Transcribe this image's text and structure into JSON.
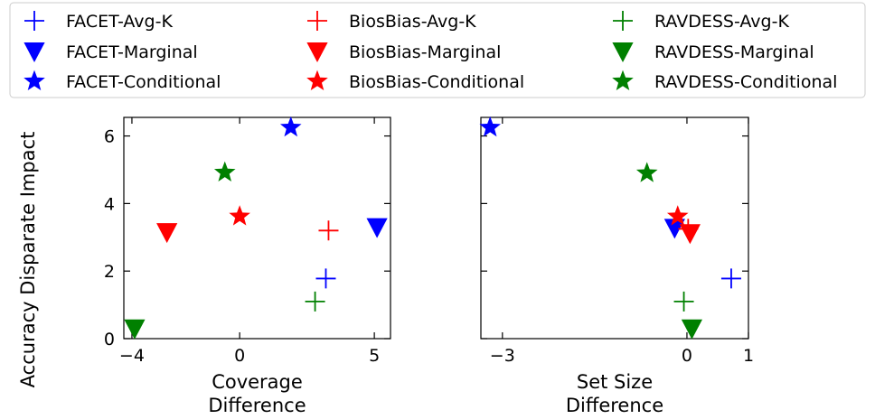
{
  "colors": {
    "FACET": "#0000ff",
    "BiosBias": "#ff0000",
    "RAVDESS": "#008000"
  },
  "legend": [
    {
      "label": "FACET-Avg-K",
      "dataset": "FACET",
      "marker": "plus"
    },
    {
      "label": "FACET-Marginal",
      "dataset": "FACET",
      "marker": "triangle"
    },
    {
      "label": "FACET-Conditional",
      "dataset": "FACET",
      "marker": "star"
    },
    {
      "label": "BiosBias-Avg-K",
      "dataset": "BiosBias",
      "marker": "plus"
    },
    {
      "label": "BiosBias-Marginal",
      "dataset": "BiosBias",
      "marker": "triangle"
    },
    {
      "label": "BiosBias-Conditional",
      "dataset": "BiosBias",
      "marker": "star"
    },
    {
      "label": "RAVDESS-Avg-K",
      "dataset": "RAVDESS",
      "marker": "plus"
    },
    {
      "label": "RAVDESS-Marginal",
      "dataset": "RAVDESS",
      "marker": "triangle"
    },
    {
      "label": "RAVDESS-Conditional",
      "dataset": "RAVDESS",
      "marker": "star"
    }
  ],
  "chart_data": [
    {
      "type": "scatter",
      "xlabel": [
        "Coverage",
        "Difference"
      ],
      "ylabel": "Accuracy Disparate Impact",
      "xlim": [
        -4.3,
        5.6
      ],
      "ylim": [
        0,
        6.55
      ],
      "xticks": [
        -4,
        0,
        5
      ],
      "yticks": [
        0,
        2,
        4,
        6
      ],
      "points": [
        {
          "series": "FACET-Avg-K",
          "x": 3.2,
          "y": 1.78
        },
        {
          "series": "FACET-Marginal",
          "x": 5.1,
          "y": 3.3
        },
        {
          "series": "FACET-Conditional",
          "x": 1.9,
          "y": 6.25
        },
        {
          "series": "BiosBias-Avg-K",
          "x": 3.3,
          "y": 3.2
        },
        {
          "series": "BiosBias-Marginal",
          "x": -2.7,
          "y": 3.15
        },
        {
          "series": "BiosBias-Conditional",
          "x": 0.0,
          "y": 3.62
        },
        {
          "series": "RAVDESS-Avg-K",
          "x": 2.8,
          "y": 1.1
        },
        {
          "series": "RAVDESS-Marginal",
          "x": -3.9,
          "y": 0.3
        },
        {
          "series": "RAVDESS-Conditional",
          "x": -0.55,
          "y": 4.92
        }
      ]
    },
    {
      "type": "scatter",
      "xlabel": [
        "Set Size",
        "Difference"
      ],
      "ylabel": "",
      "xlim": [
        -3.35,
        1.0
      ],
      "ylim": [
        0,
        6.55
      ],
      "xticks": [
        -3,
        0,
        1
      ],
      "yticks": [
        0,
        2,
        4,
        6
      ],
      "points": [
        {
          "series": "FACET-Avg-K",
          "x": 0.72,
          "y": 1.78
        },
        {
          "series": "FACET-Marginal",
          "x": -0.2,
          "y": 3.28
        },
        {
          "series": "FACET-Conditional",
          "x": -3.2,
          "y": 6.25
        },
        {
          "series": "BiosBias-Avg-K",
          "x": 0.02,
          "y": 3.25
        },
        {
          "series": "BiosBias-Marginal",
          "x": 0.05,
          "y": 3.12
        },
        {
          "series": "BiosBias-Conditional",
          "x": -0.15,
          "y": 3.62
        },
        {
          "series": "RAVDESS-Avg-K",
          "x": -0.05,
          "y": 1.1
        },
        {
          "series": "RAVDESS-Marginal",
          "x": 0.08,
          "y": 0.3
        },
        {
          "series": "RAVDESS-Conditional",
          "x": -0.65,
          "y": 4.9
        }
      ]
    }
  ]
}
